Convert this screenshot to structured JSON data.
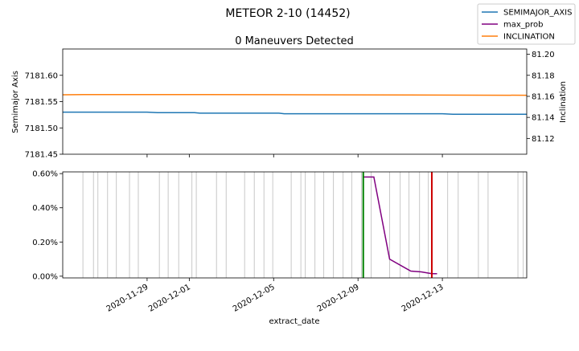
{
  "chart_data": {
    "type": "line",
    "title": "METEOR 2-10 (14452)",
    "colors": {
      "semimajor": "#1f77b4",
      "inclination": "#ff7f0e",
      "max_prob": "#800080",
      "vline_green": "#008000",
      "vline_red": "#cc0000",
      "event_lines": "#c8c8c8"
    },
    "legend": {
      "placement": "top-right",
      "entries": [
        "SEMIMAJOR_AXIS",
        "max_prob",
        "INCLINATION"
      ]
    },
    "xlabel": "extract_date",
    "x_ticks": [
      "2020-11-29",
      "2020-12-01",
      "2020-12-05",
      "2020-12-09",
      "2020-12-13"
    ],
    "xlim": [
      "2020-11-25T00:00",
      "2020-12-17T00:00"
    ],
    "top_panel": {
      "subtitle": "0 Maneuvers Detected",
      "ylabel_left": "Semimajor Axis",
      "ylabel_right": "Inclination",
      "ylim_left": [
        7181.45,
        7181.65
      ],
      "yticks_left": [
        "7181.45",
        "7181.50",
        "7181.55",
        "7181.60"
      ],
      "ylim_right": [
        81.105,
        81.205
      ],
      "yticks_right": [
        "81.12",
        "81.14",
        "81.16",
        "81.18",
        "81.20"
      ],
      "semimajor_axis": {
        "x": [
          "2020-11-25T00:00",
          "2020-11-29T00:00",
          "2020-11-29T12:00",
          "2020-12-01T06:00",
          "2020-12-01T12:00",
          "2020-12-05T06:00",
          "2020-12-05T12:00",
          "2020-12-13T00:00",
          "2020-12-13T12:00",
          "2020-12-17T00:00"
        ],
        "y": [
          7181.53,
          7181.53,
          7181.529,
          7181.529,
          7181.528,
          7181.528,
          7181.527,
          7181.527,
          7181.526,
          7181.526
        ]
      },
      "inclination": {
        "x": [
          "2020-11-25T00:00",
          "2020-11-26T00:00",
          "2020-12-01T00:00",
          "2020-12-05T00:00",
          "2020-12-09T00:00",
          "2020-12-13T00:00",
          "2020-12-17T00:00"
        ],
        "y": [
          81.1615,
          81.1617,
          81.1617,
          81.1616,
          81.1614,
          81.1612,
          81.161
        ]
      }
    },
    "bottom_panel": {
      "ylim": [
        -0.0001,
        0.0061
      ],
      "yticks": [
        "0.00%",
        "0.20%",
        "0.40%",
        "0.60%"
      ],
      "ytick_values": [
        0,
        0.002,
        0.004,
        0.006
      ],
      "max_prob": {
        "x": [
          "2020-12-09T06:00",
          "2020-12-09T18:00",
          "2020-12-10T12:00",
          "2020-12-11T12:00",
          "2020-12-12T00:00",
          "2020-12-12T12:00",
          "2020-12-12T18:00"
        ],
        "y": [
          0.0058,
          0.0058,
          0.001,
          0.0003,
          0.00025,
          0.00015,
          0.00015
        ]
      },
      "green_vline": "2020-12-09T06:00",
      "red_vline": "2020-12-12T12:00",
      "event_lines": [
        "2020-11-25T23:00",
        "2020-11-26T11:00",
        "2020-11-26T16:00",
        "2020-11-27T03:00",
        "2020-11-27T13:00",
        "2020-11-28T04:00",
        "2020-11-28T14:00",
        "2020-11-29T14:00",
        "2020-11-30T00:00",
        "2020-11-30T12:00",
        "2020-12-01T03:00",
        "2020-12-01T08:00",
        "2020-12-02T07:00",
        "2020-12-02T18:00",
        "2020-12-03T15:00",
        "2020-12-04T02:00",
        "2020-12-04T13:00",
        "2020-12-04T23:00",
        "2020-12-05T20:00",
        "2020-12-06T07:00",
        "2020-12-06T12:00",
        "2020-12-06T23:00",
        "2020-12-07T09:00",
        "2020-12-07T20:00",
        "2020-12-08T07:00",
        "2020-12-08T17:00",
        "2020-12-09T04:00",
        "2020-12-09T15:00",
        "2020-12-10T12:00",
        "2020-12-11T00:00",
        "2020-12-11T10:00",
        "2020-12-11T22:00",
        "2020-12-12T08:00",
        "2020-12-13T06:00",
        "2020-12-13T18:00",
        "2020-12-14T17:00",
        "2020-12-15T04:00",
        "2020-12-16T14:00",
        "2020-12-16T20:00"
      ]
    }
  }
}
